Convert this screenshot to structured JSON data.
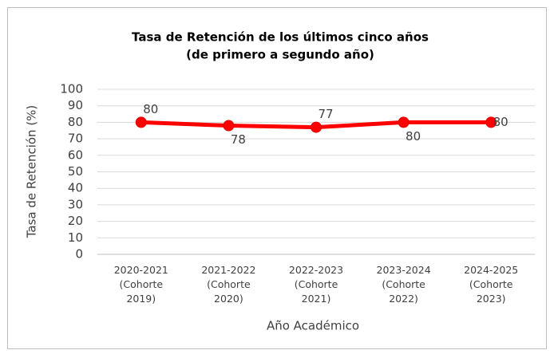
{
  "chart_data": {
    "type": "line",
    "title": [
      "Tasa de Retención de los últimos cinco años",
      "(de primero a segundo año)"
    ],
    "x_label": "Año Académico",
    "y_label": "Tasa de Retención (%)",
    "categories": [
      [
        "2020-2021",
        "(Cohorte",
        "2019)"
      ],
      [
        "2021-2022",
        "(Cohorte",
        "2020)"
      ],
      [
        "2022-2023",
        "(Cohorte",
        "2021)"
      ],
      [
        "2023-2024",
        "(Cohorte",
        "2022)"
      ],
      [
        "2024-2025",
        "(Cohorte",
        "2023)"
      ]
    ],
    "series": [
      {
        "name": "Tasa de Retención",
        "color": "#ff0000",
        "values": [
          80,
          78,
          77,
          80,
          80
        ]
      }
    ],
    "ylim": [
      0,
      100
    ],
    "yticks": [
      0,
      10,
      20,
      30,
      40,
      50,
      60,
      70,
      80,
      90,
      100
    ],
    "grid": true
  }
}
